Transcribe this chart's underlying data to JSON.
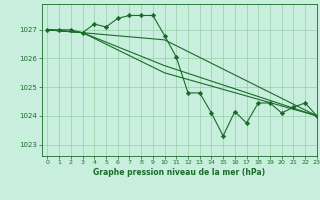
{
  "xlabel": "Graphe pression niveau de la mer (hPa)",
  "ylim": [
    1022.6,
    1027.9
  ],
  "xlim": [
    -0.5,
    23
  ],
  "yticks": [
    1023,
    1024,
    1025,
    1026,
    1027
  ],
  "xticks": [
    0,
    1,
    2,
    3,
    4,
    5,
    6,
    7,
    8,
    9,
    10,
    11,
    12,
    13,
    14,
    15,
    16,
    17,
    18,
    19,
    20,
    21,
    22,
    23
  ],
  "bg_color": "#c8eedd",
  "grid_color": "#99ccaa",
  "line_color": "#1a6b2a",
  "marker_color": "#1a6b2a",
  "series1": {
    "x": [
      0,
      1,
      2,
      3,
      4,
      5,
      6,
      7,
      8,
      9,
      10,
      11,
      12,
      13,
      14,
      15,
      16,
      17,
      18,
      19,
      20,
      21,
      22,
      23
    ],
    "y": [
      1027.0,
      1027.0,
      1027.0,
      1026.9,
      1027.2,
      1027.1,
      1027.4,
      1027.5,
      1027.5,
      1027.5,
      1026.8,
      1026.05,
      1024.8,
      1024.8,
      1024.1,
      1023.3,
      1024.15,
      1023.75,
      1024.45,
      1024.45,
      1024.1,
      1024.3,
      1024.45,
      1024.0
    ]
  },
  "series2": {
    "x": [
      0,
      3,
      10,
      23
    ],
    "y": [
      1027.0,
      1026.9,
      1026.65,
      1024.0
    ]
  },
  "series3": {
    "x": [
      0,
      3,
      10,
      23
    ],
    "y": [
      1027.0,
      1026.9,
      1025.75,
      1024.0
    ]
  },
  "series4": {
    "x": [
      0,
      3,
      10,
      23
    ],
    "y": [
      1027.0,
      1026.9,
      1025.5,
      1024.0
    ]
  }
}
